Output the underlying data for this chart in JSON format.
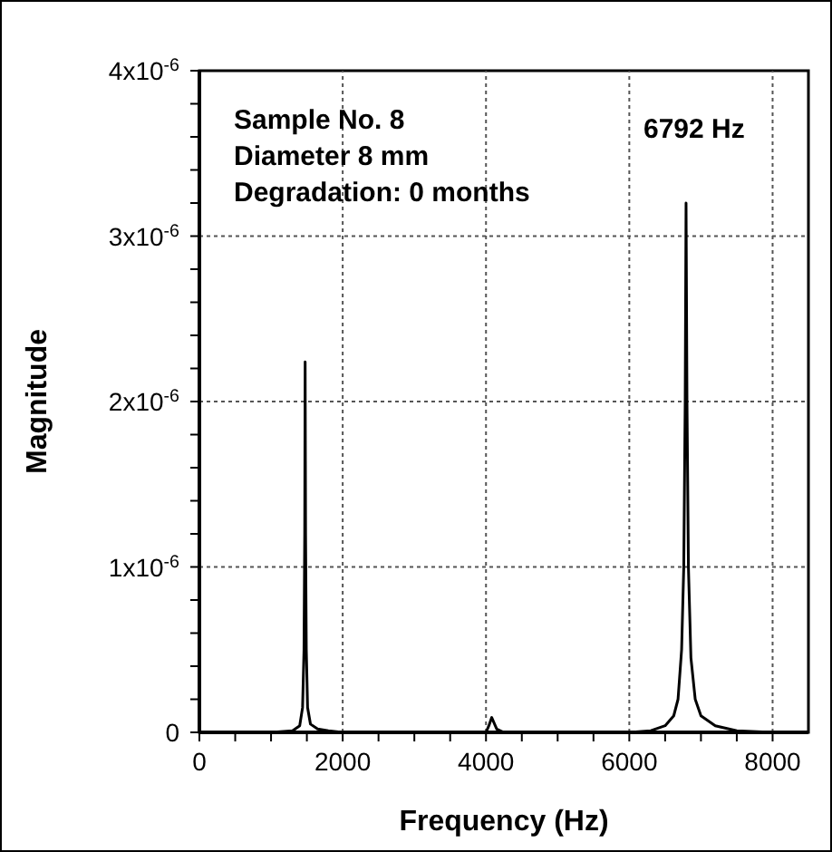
{
  "chart_data": {
    "type": "line",
    "xlabel": "Frequency (Hz)",
    "ylabel": "Magnitude",
    "annotations": [
      "Sample No. 8",
      "Diameter 8 mm",
      "Degradation: 0 months",
      "6792 Hz"
    ],
    "xlim": [
      0,
      8500
    ],
    "xticks": [
      0,
      {
        "value": 500,
        "label": null
      },
      {
        "value": 1000,
        "label": null
      },
      {
        "value": 1500,
        "label": null
      },
      2000,
      {
        "value": 2500,
        "label": null
      },
      {
        "value": 3000,
        "label": null
      },
      {
        "value": 3500,
        "label": null
      },
      4000,
      {
        "value": 4500,
        "label": null
      },
      {
        "value": 5000,
        "label": null
      },
      {
        "value": 5500,
        "label": null
      },
      6000,
      {
        "value": 6500,
        "label": null
      },
      {
        "value": 7000,
        "label": null
      },
      {
        "value": 7500,
        "label": null
      },
      8000
    ],
    "ylim": [
      0,
      4e-06
    ],
    "yticks": [
      0,
      {
        "value": 2e-07,
        "label": null
      },
      {
        "value": 4e-07,
        "label": null
      },
      {
        "value": 6e-07,
        "label": null
      },
      {
        "value": 8e-07,
        "label": null
      },
      {
        "value": 1e-06,
        "label": "1x10$^{-6}$"
      },
      {
        "value": 1.2e-06,
        "label": null
      },
      {
        "value": 1.4e-06,
        "label": null
      },
      {
        "value": 1.6e-06,
        "label": null
      },
      {
        "value": 1.8e-06,
        "label": null
      },
      {
        "value": 2e-06,
        "label": "2x10$^{-6}$"
      },
      {
        "value": 2.2e-06,
        "label": null
      },
      {
        "value": 2.4e-06,
        "label": null
      },
      {
        "value": 2.6e-06,
        "label": null
      },
      {
        "value": 2.8e-06,
        "label": null
      },
      {
        "value": 3e-06,
        "label": "3x10$^{-6}$"
      },
      {
        "value": 3.2e-06,
        "label": null
      },
      {
        "value": 3.4e-06,
        "label": null
      },
      {
        "value": 3.6e-06,
        "label": null
      },
      {
        "value": 3.8e-06,
        "label": null
      },
      {
        "value": 4e-06,
        "label": "4x10$^{-6}$"
      }
    ],
    "grid": true,
    "marker": "none",
    "line_style": "solid",
    "series": [
      {
        "color": "#000000",
        "x": [
          0,
          1000,
          1300,
          1400,
          1440,
          1460,
          1470,
          1476,
          1482,
          1492,
          1510,
          1550,
          1650,
          1800,
          2000,
          3000,
          4000,
          4040,
          4080,
          4110,
          4150,
          4250,
          5000,
          6000,
          6300,
          6500,
          6560,
          6620,
          6680,
          6730,
          6760,
          6780,
          6792,
          6805,
          6825,
          6860,
          6920,
          7000,
          7200,
          7500,
          8000,
          8500
        ],
        "values": [
          0,
          0,
          1e-08,
          4e-08,
          1.5e-07,
          5e-07,
          1.2e-06,
          2.24e-06,
          1.2e-06,
          5e-07,
          1.5e-07,
          5e-08,
          2e-08,
          1e-08,
          0,
          0,
          0,
          4e-08,
          9e-08,
          6e-08,
          2e-08,
          0,
          0,
          0,
          1e-08,
          4e-08,
          7e-08,
          1e-07,
          2e-07,
          5e-07,
          1e-06,
          2e-06,
          3.2e-06,
          2e-06,
          1e-06,
          4.5e-07,
          2e-07,
          1e-07,
          4e-08,
          1e-08,
          0,
          0
        ]
      }
    ]
  }
}
